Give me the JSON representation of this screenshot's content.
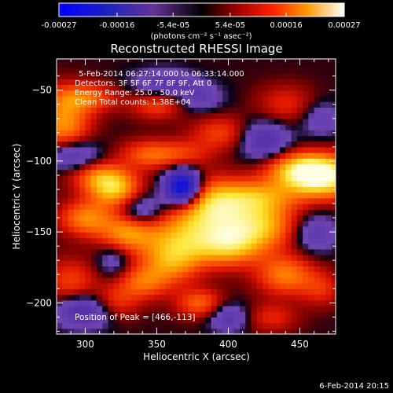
{
  "chart_data": {
    "type": "heatmap",
    "title": "Reconstructed RHESSI Image",
    "colorbar": {
      "ticks": [
        "-0.00027",
        "-0.00016",
        "-5.4e-05",
        "5.4e-05",
        "0.00016",
        "0.00027"
      ],
      "tick_values": [
        -0.00027,
        -0.00016,
        -5.4e-05,
        5.4e-05,
        0.00016,
        0.00027
      ],
      "range": [
        -0.00027,
        0.00027
      ],
      "unit_label": "(photons cm⁻² s⁻¹ asec⁻²)",
      "colormap": [
        "#0000ff",
        "#2222aa",
        "#442288",
        "#663399",
        "#000000",
        "#880000",
        "#ff2200",
        "#ff8800",
        "#ffcc00",
        "#ffffff"
      ]
    },
    "xlabel": "Heliocentric X (arcsec)",
    "ylabel": "Heliocentric Y (arcsec)",
    "xlim": [
      280,
      475
    ],
    "ylim": [
      -222,
      -28
    ],
    "xticks": [
      300,
      350,
      400,
      450
    ],
    "yticks": [
      -50,
      -100,
      -150,
      -200
    ],
    "annotations": [
      "5-Feb-2014 06:27:14.000 to 06:33:14.000",
      "Detectors: 3F 5F 6F 7F 8F 9F, Att 0",
      "Energy Range: 25.0 - 50.0 keV",
      "Clean     Total counts: 1.38E+04"
    ],
    "peak_label": "Position of Peak = [466,-113]",
    "peak": [
      466,
      -113
    ],
    "minimum_location": [
      368,
      -118
    ],
    "timestamp": "6-Feb-2014 20:15"
  }
}
